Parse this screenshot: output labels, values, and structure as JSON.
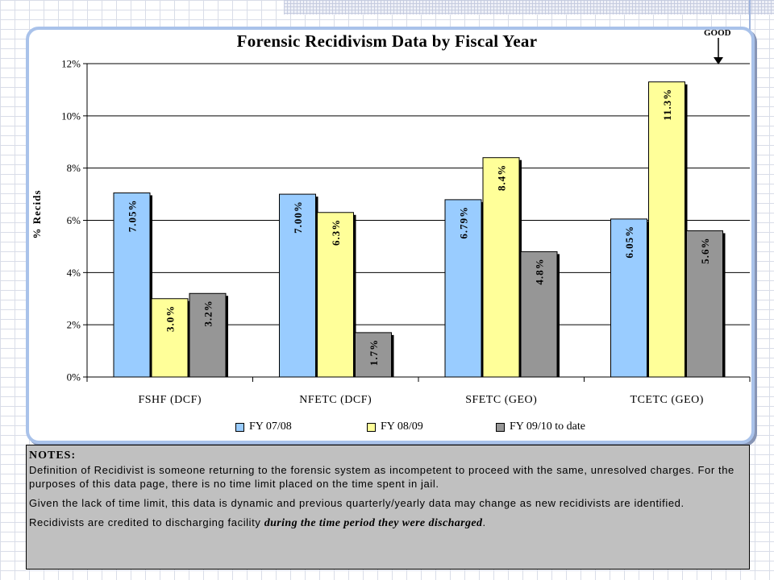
{
  "chart_data": {
    "type": "bar",
    "title": "Forensic Recidivism Data by Fiscal Year",
    "xlabel": "",
    "ylabel": "% Recids",
    "ylim": [
      0,
      12
    ],
    "yticks": [
      "0%",
      "2%",
      "4%",
      "6%",
      "8%",
      "10%",
      "12%"
    ],
    "grid": true,
    "legend_position": "bottom",
    "categories": [
      "FSHF (DCF)",
      "NFETC (DCF)",
      "SFETC (GEO)",
      "TCETC (GEO)"
    ],
    "series": [
      {
        "name": "FY 07/08",
        "color": "#99ccff",
        "values": [
          7.05,
          7.0,
          6.79,
          6.05
        ],
        "labels": [
          "7.05%",
          "7.00%",
          "6.79%",
          "6.05%"
        ]
      },
      {
        "name": "FY 08/09",
        "color": "#ffff99",
        "values": [
          3.0,
          6.3,
          8.4,
          11.3
        ],
        "labels": [
          "3.0%",
          "6.3%",
          "8.4%",
          "11.3%"
        ]
      },
      {
        "name": "FY 09/10 to date",
        "color": "#969696",
        "values": [
          3.2,
          1.7,
          4.8,
          5.6
        ],
        "labels": [
          "3.2%",
          "1.7%",
          "4.8%",
          "5.6%"
        ]
      }
    ],
    "annotation": "GOOD"
  },
  "notes": {
    "heading": "NOTES:",
    "para1": "Definition of Recidivist is someone returning to the forensic system as incompetent to proceed with the same, unresolved charges.  For the purposes of this data page, there is no time limit placed on the time spent in jail.",
    "para2": "Given the lack of time limit, this data is dynamic and previous quarterly/yearly data may change as new recidivists are identified.",
    "para3_prefix": "Recidivists are credited to discharging facility ",
    "para3_emphasis": "during the time period they were discharged",
    "para3_suffix": "."
  }
}
